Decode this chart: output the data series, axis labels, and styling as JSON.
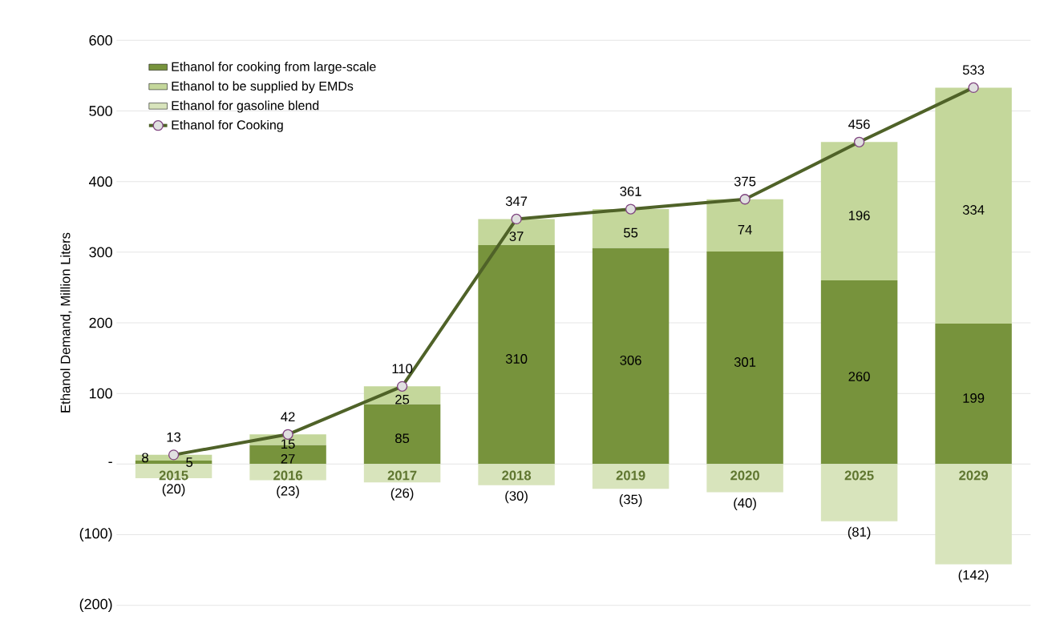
{
  "chart_data": {
    "type": "bar",
    "stacked": true,
    "ylabel": "Ethanol Demand, Million Liters",
    "categories": [
      "2015",
      "2016",
      "2017",
      "2018",
      "2019",
      "2020",
      "2025",
      "2029"
    ],
    "series": [
      {
        "name": "Ethanol for cooking from large-scale",
        "color": "#77933c",
        "values": [
          5,
          27,
          85,
          310,
          306,
          301,
          260,
          199
        ],
        "value_labels": [
          "5",
          "27",
          "85",
          "310",
          "306",
          "301",
          "260",
          "199"
        ]
      },
      {
        "name": "Ethanol to be supplied by EMDs",
        "color": "#c4d79b",
        "values": [
          8,
          15,
          25,
          37,
          55,
          74,
          196,
          334
        ],
        "value_labels": [
          "8",
          "15",
          "25",
          "37",
          "55",
          "74",
          "196",
          "334"
        ]
      },
      {
        "name": "Ethanol for gasoline blend",
        "color": "#d8e4bc",
        "values": [
          -20,
          -23,
          -26,
          -30,
          -35,
          -40,
          -81,
          -142
        ],
        "value_labels": [
          "(20)",
          "(23)",
          "(26)",
          "(30)",
          "(35)",
          "(40)",
          "(81)",
          "(142)"
        ]
      },
      {
        "name": "Ethanol for Cooking",
        "type": "line",
        "color": "#4f6228",
        "marker": "circle",
        "values": [
          13,
          42,
          110,
          347,
          361,
          375,
          456,
          533
        ],
        "value_labels": [
          "13",
          "42",
          "110",
          "347",
          "361",
          "375",
          "456",
          "533"
        ]
      }
    ],
    "ylim": [
      -200,
      600
    ],
    "yticks": [
      {
        "value": -200,
        "label": "(200)"
      },
      {
        "value": -100,
        "label": "(100)"
      },
      {
        "value": 0,
        "label": "-"
      },
      100,
      200,
      300,
      400,
      500,
      600
    ],
    "grid": "y",
    "legend": "top left"
  }
}
